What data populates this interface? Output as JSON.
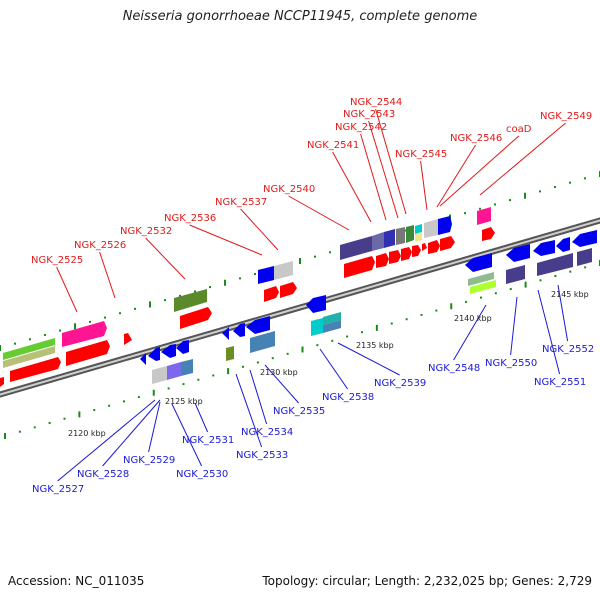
{
  "title": "Neisseria gonorrhoeae NCCP11945, complete genome",
  "footer": {
    "accession": "Accession: NC_011035",
    "summary": "Topology: circular; Length: 2,232,025 bp; Genes: 2,729"
  },
  "colors": {
    "label_top": "#e11a1a",
    "label_bottom": "#1a1ad6",
    "backbone": "#777777",
    "tick": "#1a8a1a"
  },
  "scale_labels": [
    "2120 kbp",
    "2125 kbp",
    "2130 kbp",
    "2135 kbp",
    "2140 kbp",
    "2145 kbp"
  ],
  "gene_labels_top": [
    "NGK_2525",
    "NGK_2526",
    "NGK_2532",
    "NGK_2536",
    "NGK_2537",
    "NGK_2540",
    "NGK_2541",
    "NGK_2542",
    "NGK_2543",
    "NGK_2544",
    "NGK_2545",
    "NGK_2546",
    "coaD",
    "NGK_2549"
  ],
  "gene_labels_bottom": [
    "NGK_2527",
    "NGK_2528",
    "NGK_2529",
    "NGK_2530",
    "NGK_2531",
    "NGK_2533",
    "NGK_2534",
    "NGK_2535",
    "NGK_2538",
    "NGK_2539",
    "NGK_2548",
    "NGK_2550",
    "NGK_2551",
    "NGK_2552"
  ]
}
